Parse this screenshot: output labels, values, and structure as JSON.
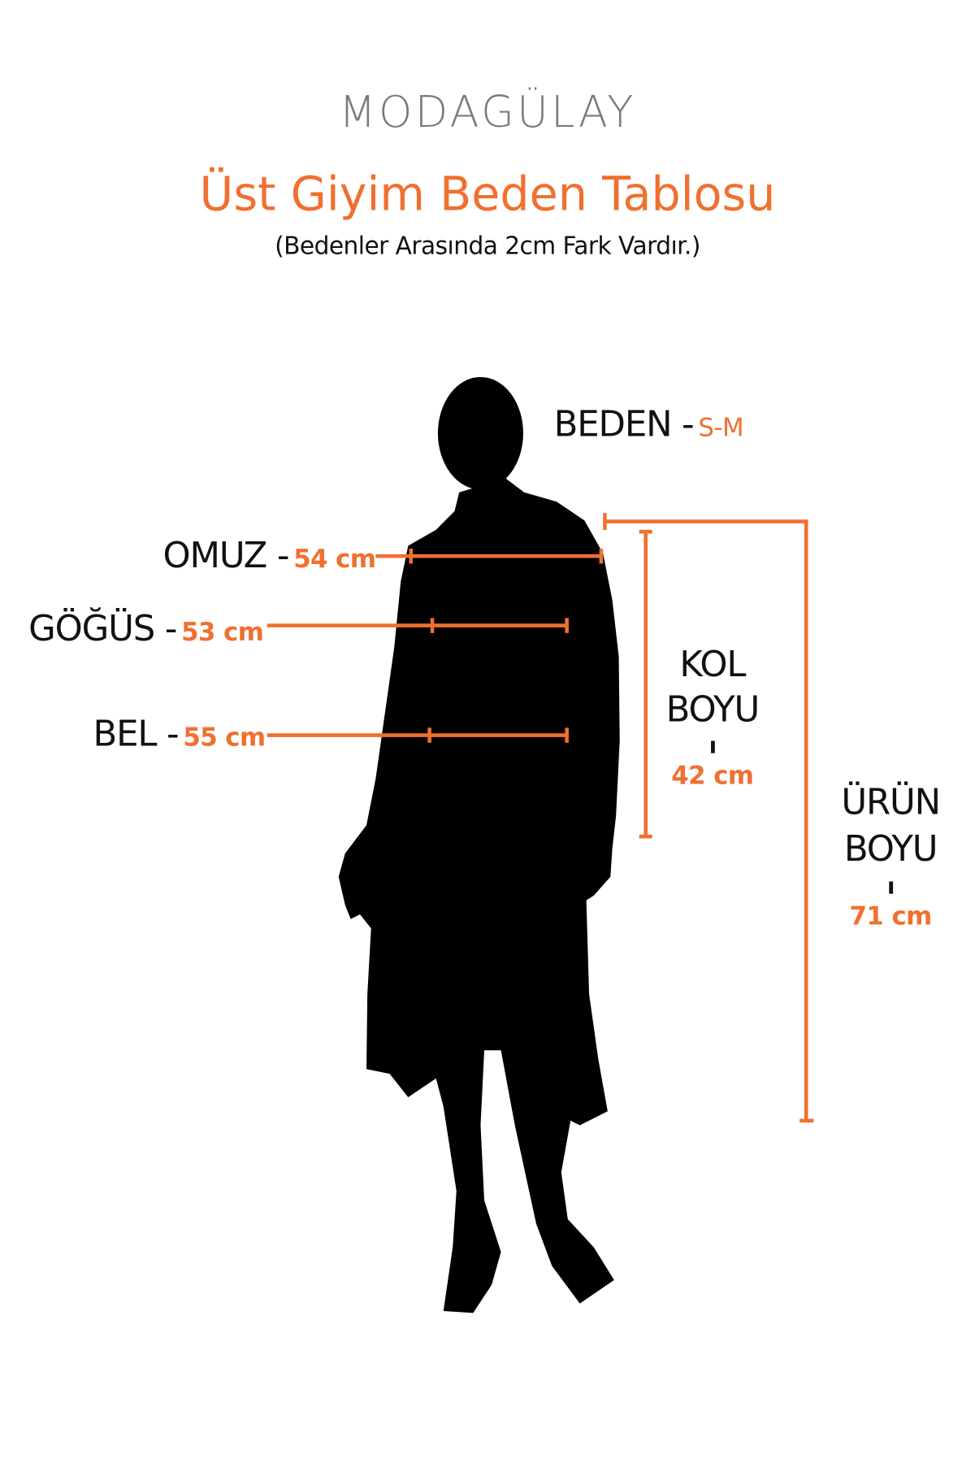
{
  "brand": {
    "logo": "MODAGÜLAY"
  },
  "header": {
    "title": "Üst Giyim Beden Tablosu",
    "subtitle": "(Bedenler Arasında 2cm Fark Vardır.)"
  },
  "size": {
    "label": "BEDEN -",
    "value": "S-M"
  },
  "measurements": {
    "shoulder": {
      "label": "OMUZ -",
      "value": "54 cm"
    },
    "chest": {
      "label": "GÖĞÜS -",
      "value": "53 cm"
    },
    "waist": {
      "label": "BEL -",
      "value": "55 cm"
    },
    "sleeve": {
      "label_line1": "KOL",
      "label_line2": "BOYU",
      "separator": "ı",
      "value": "42 cm"
    },
    "length": {
      "label_line1": "ÜRÜN",
      "label_line2": "BOYU",
      "separator": "ı",
      "value": "71 cm"
    }
  },
  "colors": {
    "accent": "#f07030",
    "logo": "#7a7a7a",
    "silhouette": "#000000"
  }
}
